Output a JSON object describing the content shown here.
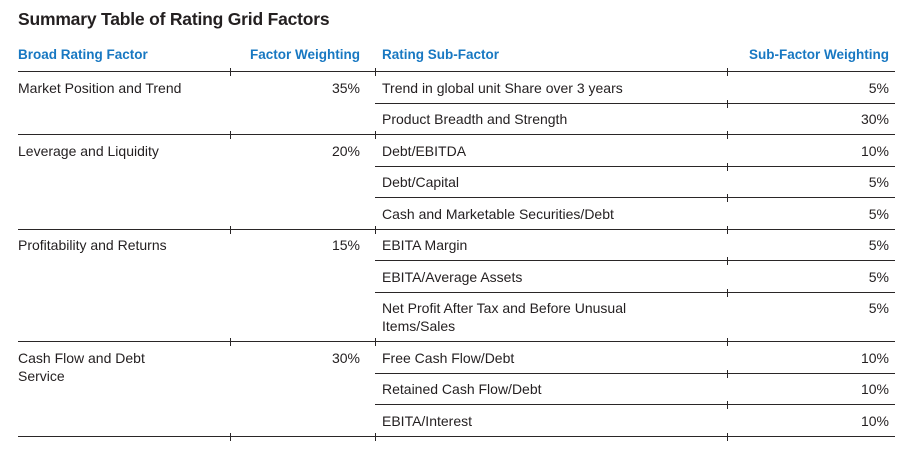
{
  "title": "Summary Table of Rating Grid Factors",
  "colors": {
    "header_blue": "#1878c2",
    "text": "#231f20",
    "rule": "#2a2627"
  },
  "table": {
    "headers": {
      "broad_factor": "Broad Rating Factor",
      "factor_weighting": "Factor Weighting",
      "sub_factor": "Rating Sub-Factor",
      "sub_factor_weighting": "Sub-Factor Weighting"
    },
    "groups": [
      {
        "factor": "Market Position and Trend",
        "weighting": "35%",
        "subfactors": [
          {
            "label": "Trend in global unit Share over 3 years",
            "weighting": "5%"
          },
          {
            "label": "Product Breadth and Strength",
            "weighting": "30%"
          }
        ]
      },
      {
        "factor": "Leverage and Liquidity",
        "weighting": "20%",
        "subfactors": [
          {
            "label": "Debt/EBITDA",
            "weighting": "10%"
          },
          {
            "label": "Debt/Capital",
            "weighting": "5%"
          },
          {
            "label": "Cash and Marketable Securities/Debt",
            "weighting": "5%"
          }
        ]
      },
      {
        "factor": "Profitability and Returns",
        "weighting": "15%",
        "subfactors": [
          {
            "label": "EBITA Margin",
            "weighting": "5%"
          },
          {
            "label": "EBITA/Average Assets",
            "weighting": "5%"
          },
          {
            "label": "Net Profit After Tax and Before Unusual\nItems/Sales",
            "weighting": "5%"
          }
        ]
      },
      {
        "factor": "Cash Flow and Debt\nService",
        "weighting": "30%",
        "subfactors": [
          {
            "label": "Free Cash Flow/Debt",
            "weighting": "10%"
          },
          {
            "label": "Retained Cash Flow/Debt",
            "weighting": "10%"
          },
          {
            "label": "EBITA/Interest",
            "weighting": "10%"
          }
        ]
      }
    ]
  }
}
